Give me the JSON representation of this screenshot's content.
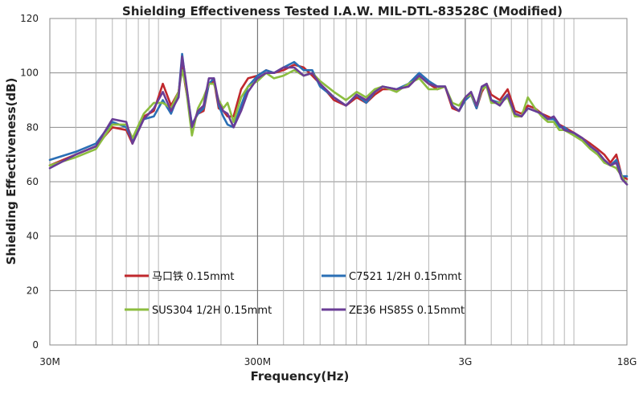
{
  "chart_data": {
    "type": "line",
    "title": "Shielding Effectiveness Tested I.A.W. MIL-DTL-83528C (Modified)",
    "xlabel": "Frequency(Hz)",
    "ylabel": "Shielding Effectiveness(dB)",
    "x_scale": "log",
    "xlim": [
      30000000,
      18000000000
    ],
    "ylim": [
      0,
      120
    ],
    "x_ticks": [
      {
        "value": 30000000,
        "label": "30M"
      },
      {
        "value": 300000000,
        "label": "300M"
      },
      {
        "value": 3000000000,
        "label": "3G"
      },
      {
        "value": 18000000000,
        "label": "18G"
      }
    ],
    "y_ticks": [
      0,
      20,
      40,
      60,
      80,
      100,
      120
    ],
    "grid": true,
    "legend": "inside-bottom",
    "series": [
      {
        "name": "马口铁 0.15mmt",
        "color": "#c0282d",
        "points": [
          [
            30000000,
            66
          ],
          [
            40000000,
            70
          ],
          [
            50000000,
            73
          ],
          [
            60000000,
            80
          ],
          [
            70000000,
            79
          ],
          [
            75000000,
            74
          ],
          [
            85000000,
            84
          ],
          [
            95000000,
            86
          ],
          [
            105000000,
            96
          ],
          [
            115000000,
            88
          ],
          [
            125000000,
            93
          ],
          [
            130000000,
            103
          ],
          [
            135000000,
            95
          ],
          [
            145000000,
            81
          ],
          [
            155000000,
            85
          ],
          [
            165000000,
            86
          ],
          [
            175000000,
            96
          ],
          [
            185000000,
            97
          ],
          [
            195000000,
            87
          ],
          [
            205000000,
            86
          ],
          [
            215000000,
            84
          ],
          [
            230000000,
            84
          ],
          [
            250000000,
            94
          ],
          [
            270000000,
            98
          ],
          [
            300000000,
            99
          ],
          [
            330000000,
            101
          ],
          [
            360000000,
            100
          ],
          [
            400000000,
            101
          ],
          [
            450000000,
            103
          ],
          [
            500000000,
            102
          ],
          [
            550000000,
            99
          ],
          [
            600000000,
            96
          ],
          [
            700000000,
            90
          ],
          [
            800000000,
            88
          ],
          [
            900000000,
            91
          ],
          [
            1000000000,
            89
          ],
          [
            1100000000,
            92
          ],
          [
            1200000000,
            94
          ],
          [
            1400000000,
            94
          ],
          [
            1600000000,
            95
          ],
          [
            1800000000,
            99
          ],
          [
            2000000000,
            96
          ],
          [
            2200000000,
            94
          ],
          [
            2400000000,
            95
          ],
          [
            2600000000,
            87
          ],
          [
            2800000000,
            86
          ],
          [
            3000000000,
            90
          ],
          [
            3200000000,
            92
          ],
          [
            3400000000,
            87
          ],
          [
            3600000000,
            93
          ],
          [
            3800000000,
            96
          ],
          [
            4000000000,
            92
          ],
          [
            4400000000,
            90
          ],
          [
            4800000000,
            94
          ],
          [
            5200000000,
            86
          ],
          [
            5600000000,
            85
          ],
          [
            6000000000,
            88
          ],
          [
            6500000000,
            87
          ],
          [
            7000000000,
            85
          ],
          [
            7500000000,
            84
          ],
          [
            8000000000,
            83
          ],
          [
            8500000000,
            81
          ],
          [
            9000000000,
            80
          ],
          [
            10000000000,
            78
          ],
          [
            11000000000,
            76
          ],
          [
            12000000000,
            74
          ],
          [
            13000000000,
            72
          ],
          [
            14000000000,
            70
          ],
          [
            15000000000,
            67
          ],
          [
            16000000000,
            70
          ],
          [
            17000000000,
            62
          ],
          [
            18000000000,
            61
          ]
        ]
      },
      {
        "name": "C7521 1/2H 0.15mmt",
        "color": "#2a6fb5",
        "points": [
          [
            30000000,
            68
          ],
          [
            40000000,
            71
          ],
          [
            50000000,
            74
          ],
          [
            60000000,
            82
          ],
          [
            70000000,
            80
          ],
          [
            75000000,
            75
          ],
          [
            85000000,
            83
          ],
          [
            95000000,
            84
          ],
          [
            105000000,
            90
          ],
          [
            115000000,
            85
          ],
          [
            125000000,
            92
          ],
          [
            130000000,
            107
          ],
          [
            135000000,
            97
          ],
          [
            145000000,
            81
          ],
          [
            155000000,
            85
          ],
          [
            165000000,
            87
          ],
          [
            175000000,
            96
          ],
          [
            185000000,
            98
          ],
          [
            195000000,
            88
          ],
          [
            205000000,
            84
          ],
          [
            215000000,
            81
          ],
          [
            230000000,
            80
          ],
          [
            250000000,
            88
          ],
          [
            270000000,
            95
          ],
          [
            300000000,
            99
          ],
          [
            330000000,
            101
          ],
          [
            360000000,
            100
          ],
          [
            400000000,
            102
          ],
          [
            450000000,
            104
          ],
          [
            500000000,
            101
          ],
          [
            550000000,
            101
          ],
          [
            600000000,
            95
          ],
          [
            700000000,
            91
          ],
          [
            800000000,
            88
          ],
          [
            900000000,
            92
          ],
          [
            1000000000,
            89
          ],
          [
            1100000000,
            93
          ],
          [
            1200000000,
            95
          ],
          [
            1400000000,
            94
          ],
          [
            1600000000,
            96
          ],
          [
            1800000000,
            100
          ],
          [
            2000000000,
            97
          ],
          [
            2200000000,
            95
          ],
          [
            2400000000,
            95
          ],
          [
            2600000000,
            88
          ],
          [
            2800000000,
            86
          ],
          [
            3000000000,
            90
          ],
          [
            3200000000,
            92
          ],
          [
            3400000000,
            87
          ],
          [
            3600000000,
            94
          ],
          [
            3800000000,
            96
          ],
          [
            4000000000,
            90
          ],
          [
            4400000000,
            89
          ],
          [
            4800000000,
            92
          ],
          [
            5200000000,
            85
          ],
          [
            5600000000,
            84
          ],
          [
            6000000000,
            87
          ],
          [
            6500000000,
            86
          ],
          [
            7000000000,
            85
          ],
          [
            7500000000,
            83
          ],
          [
            8000000000,
            83
          ],
          [
            8500000000,
            80
          ],
          [
            9000000000,
            80
          ],
          [
            10000000000,
            77
          ],
          [
            11000000000,
            76
          ],
          [
            12000000000,
            73
          ],
          [
            13000000000,
            71
          ],
          [
            14000000000,
            68
          ],
          [
            15000000000,
            66
          ],
          [
            16000000000,
            68
          ],
          [
            17000000000,
            62
          ],
          [
            18000000000,
            62
          ]
        ]
      },
      {
        "name": "SUS304 1/2H 0.15mmt",
        "color": "#8cbd3f",
        "points": [
          [
            30000000,
            66
          ],
          [
            40000000,
            69
          ],
          [
            50000000,
            72
          ],
          [
            60000000,
            81
          ],
          [
            70000000,
            81
          ],
          [
            75000000,
            76
          ],
          [
            85000000,
            85
          ],
          [
            95000000,
            89
          ],
          [
            105000000,
            89
          ],
          [
            115000000,
            87
          ],
          [
            125000000,
            93
          ],
          [
            130000000,
            101
          ],
          [
            135000000,
            96
          ],
          [
            145000000,
            77
          ],
          [
            155000000,
            87
          ],
          [
            165000000,
            91
          ],
          [
            175000000,
            96
          ],
          [
            185000000,
            96
          ],
          [
            195000000,
            90
          ],
          [
            205000000,
            87
          ],
          [
            215000000,
            89
          ],
          [
            230000000,
            82
          ],
          [
            250000000,
            91
          ],
          [
            270000000,
            95
          ],
          [
            300000000,
            97
          ],
          [
            330000000,
            100
          ],
          [
            360000000,
            98
          ],
          [
            400000000,
            99
          ],
          [
            450000000,
            101
          ],
          [
            500000000,
            99
          ],
          [
            550000000,
            100
          ],
          [
            600000000,
            97
          ],
          [
            700000000,
            93
          ],
          [
            800000000,
            90
          ],
          [
            900000000,
            93
          ],
          [
            1000000000,
            91
          ],
          [
            1100000000,
            94
          ],
          [
            1200000000,
            95
          ],
          [
            1400000000,
            93
          ],
          [
            1600000000,
            96
          ],
          [
            1800000000,
            98
          ],
          [
            2000000000,
            94
          ],
          [
            2200000000,
            94
          ],
          [
            2400000000,
            95
          ],
          [
            2600000000,
            89
          ],
          [
            2800000000,
            88
          ],
          [
            3000000000,
            91
          ],
          [
            3200000000,
            92
          ],
          [
            3400000000,
            88
          ],
          [
            3600000000,
            94
          ],
          [
            3800000000,
            95
          ],
          [
            4000000000,
            89
          ],
          [
            4400000000,
            89
          ],
          [
            4800000000,
            91
          ],
          [
            5200000000,
            84
          ],
          [
            5600000000,
            84
          ],
          [
            6000000000,
            91
          ],
          [
            6500000000,
            87
          ],
          [
            7000000000,
            84
          ],
          [
            7500000000,
            82
          ],
          [
            8000000000,
            82
          ],
          [
            8500000000,
            79
          ],
          [
            9000000000,
            79
          ],
          [
            10000000000,
            77
          ],
          [
            11000000000,
            75
          ],
          [
            12000000000,
            72
          ],
          [
            13000000000,
            70
          ],
          [
            14000000000,
            67
          ],
          [
            15000000000,
            66
          ],
          [
            16000000000,
            65
          ],
          [
            17000000000,
            62
          ],
          [
            18000000000,
            59
          ]
        ]
      },
      {
        "name": "ZE36 HS85S 0.15mmt",
        "color": "#6a3d96",
        "points": [
          [
            30000000,
            65
          ],
          [
            40000000,
            70
          ],
          [
            50000000,
            73
          ],
          [
            60000000,
            83
          ],
          [
            70000000,
            82
          ],
          [
            75000000,
            74
          ],
          [
            85000000,
            83
          ],
          [
            95000000,
            87
          ],
          [
            105000000,
            93
          ],
          [
            115000000,
            86
          ],
          [
            125000000,
            91
          ],
          [
            130000000,
            106
          ],
          [
            135000000,
            98
          ],
          [
            145000000,
            80
          ],
          [
            155000000,
            86
          ],
          [
            165000000,
            88
          ],
          [
            175000000,
            98
          ],
          [
            185000000,
            98
          ],
          [
            195000000,
            89
          ],
          [
            205000000,
            86
          ],
          [
            215000000,
            85
          ],
          [
            230000000,
            80
          ],
          [
            250000000,
            86
          ],
          [
            270000000,
            93
          ],
          [
            300000000,
            98
          ],
          [
            330000000,
            100
          ],
          [
            360000000,
            100
          ],
          [
            400000000,
            102
          ],
          [
            450000000,
            102
          ],
          [
            500000000,
            99
          ],
          [
            550000000,
            100
          ],
          [
            600000000,
            96
          ],
          [
            700000000,
            91
          ],
          [
            800000000,
            88
          ],
          [
            900000000,
            92
          ],
          [
            1000000000,
            90
          ],
          [
            1100000000,
            93
          ],
          [
            1200000000,
            95
          ],
          [
            1400000000,
            94
          ],
          [
            1600000000,
            95
          ],
          [
            1800000000,
            99
          ],
          [
            2000000000,
            96
          ],
          [
            2200000000,
            95
          ],
          [
            2400000000,
            95
          ],
          [
            2600000000,
            88
          ],
          [
            2800000000,
            86
          ],
          [
            3000000000,
            91
          ],
          [
            3200000000,
            93
          ],
          [
            3400000000,
            88
          ],
          [
            3600000000,
            95
          ],
          [
            3800000000,
            96
          ],
          [
            4000000000,
            90
          ],
          [
            4400000000,
            88
          ],
          [
            4800000000,
            92
          ],
          [
            5200000000,
            85
          ],
          [
            5600000000,
            84
          ],
          [
            6000000000,
            87
          ],
          [
            6500000000,
            86
          ],
          [
            7000000000,
            85
          ],
          [
            7500000000,
            83
          ],
          [
            8000000000,
            84
          ],
          [
            8500000000,
            81
          ],
          [
            9000000000,
            79
          ],
          [
            10000000000,
            78
          ],
          [
            11000000000,
            76
          ],
          [
            12000000000,
            73
          ],
          [
            13000000000,
            71
          ],
          [
            14000000000,
            68
          ],
          [
            15000000000,
            66
          ],
          [
            16000000000,
            67
          ],
          [
            17000000000,
            61
          ],
          [
            18000000000,
            59
          ]
        ]
      }
    ]
  }
}
